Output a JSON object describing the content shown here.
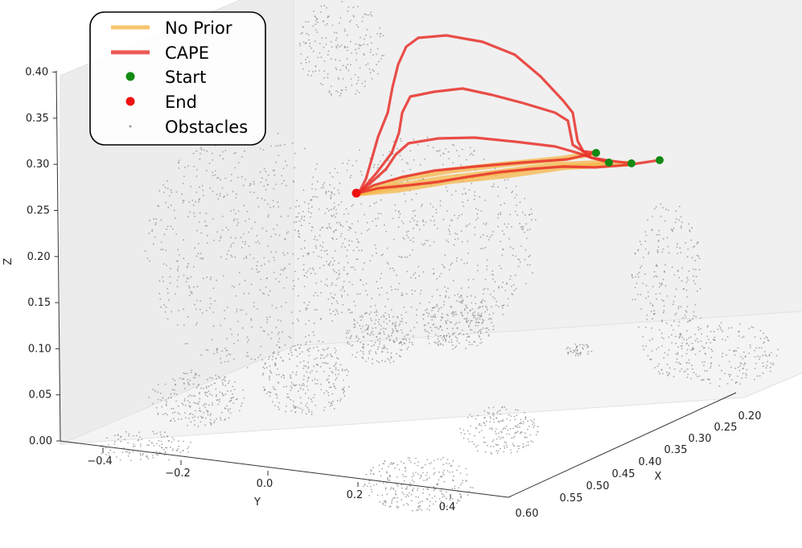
{
  "chart_data": {
    "type": "line3d",
    "xlabel": "X",
    "ylabel": "Y",
    "zlabel": "Z",
    "xlim": [
      0.2,
      0.6
    ],
    "ylim": [
      -0.5,
      0.5
    ],
    "zlim": [
      0.0,
      0.4
    ],
    "x_ticks": [
      "0.20",
      "0.25",
      "0.30",
      "0.35",
      "0.40",
      "0.45",
      "0.50",
      "0.55",
      "0.60"
    ],
    "y_ticks": [
      "−0.4",
      "−0.2",
      "0.0",
      "0.2",
      "0.4"
    ],
    "z_ticks": [
      "0.00",
      "0.05",
      "0.10",
      "0.15",
      "0.20",
      "0.25",
      "0.30",
      "0.35",
      "0.40"
    ],
    "legend": {
      "placement": "top-left",
      "entries": [
        {
          "label": "No Prior",
          "kind": "line",
          "color": "#f6b74a"
        },
        {
          "label": "CAPE",
          "kind": "line",
          "color": "#e8302a"
        },
        {
          "label": "Start",
          "kind": "marker",
          "color": "#138a13"
        },
        {
          "label": "End",
          "kind": "marker",
          "color": "#ee1111"
        },
        {
          "label": "Obstacles",
          "kind": "marker",
          "color": "#9a9a9a"
        }
      ]
    },
    "colors": {
      "no_prior": "#f6b74a",
      "cape": "#e8302a",
      "start": "#138a13",
      "end": "#ee1111",
      "obstacles": "#8c8c8c"
    },
    "series": [
      {
        "name": "No Prior",
        "points": [
          [
            0.26,
            0.28,
            0.315
          ],
          [
            0.31,
            0.1,
            0.31
          ],
          [
            0.36,
            -0.02,
            0.3
          ],
          [
            0.41,
            -0.08,
            0.285
          ]
        ]
      },
      {
        "name": "No Prior",
        "points": [
          [
            0.27,
            0.26,
            0.31
          ],
          [
            0.32,
            0.09,
            0.302
          ],
          [
            0.37,
            -0.03,
            0.292
          ],
          [
            0.41,
            -0.08,
            0.285
          ]
        ]
      },
      {
        "name": "No Prior",
        "points": [
          [
            0.28,
            0.24,
            0.307
          ],
          [
            0.33,
            0.08,
            0.298
          ],
          [
            0.38,
            -0.04,
            0.288
          ],
          [
            0.41,
            -0.08,
            0.285
          ]
        ]
      },
      {
        "name": "CAPE",
        "points": [
          [
            0.26,
            0.28,
            0.315
          ],
          [
            0.24,
            0.18,
            0.33
          ],
          [
            0.22,
            0.05,
            0.38
          ],
          [
            0.22,
            -0.02,
            0.39
          ],
          [
            0.26,
            -0.04,
            0.37
          ],
          [
            0.32,
            -0.07,
            0.33
          ],
          [
            0.38,
            -0.08,
            0.3
          ],
          [
            0.41,
            -0.08,
            0.285
          ]
        ]
      },
      {
        "name": "CAPE",
        "points": [
          [
            0.27,
            0.26,
            0.31
          ],
          [
            0.26,
            0.14,
            0.325
          ],
          [
            0.25,
            0.05,
            0.345
          ],
          [
            0.26,
            -0.01,
            0.35
          ],
          [
            0.29,
            -0.04,
            0.335
          ],
          [
            0.34,
            -0.06,
            0.31
          ],
          [
            0.41,
            -0.08,
            0.285
          ]
        ]
      },
      {
        "name": "CAPE",
        "points": [
          [
            0.28,
            0.24,
            0.307
          ],
          [
            0.28,
            0.12,
            0.315
          ],
          [
            0.29,
            0.03,
            0.322
          ],
          [
            0.31,
            -0.02,
            0.318
          ],
          [
            0.35,
            -0.05,
            0.3
          ],
          [
            0.41,
            -0.08,
            0.285
          ]
        ]
      },
      {
        "name": "CAPE",
        "points": [
          [
            0.3,
            0.2,
            0.3
          ],
          [
            0.32,
            0.1,
            0.302
          ],
          [
            0.35,
            0.01,
            0.298
          ],
          [
            0.38,
            -0.04,
            0.292
          ],
          [
            0.41,
            -0.08,
            0.285
          ]
        ]
      }
    ],
    "start_points": [
      [
        0.26,
        0.28,
        0.315
      ],
      [
        0.27,
        0.26,
        0.31
      ],
      [
        0.28,
        0.24,
        0.307
      ],
      [
        0.3,
        0.2,
        0.3
      ]
    ],
    "end_points": [
      [
        0.41,
        -0.08,
        0.285
      ]
    ]
  }
}
